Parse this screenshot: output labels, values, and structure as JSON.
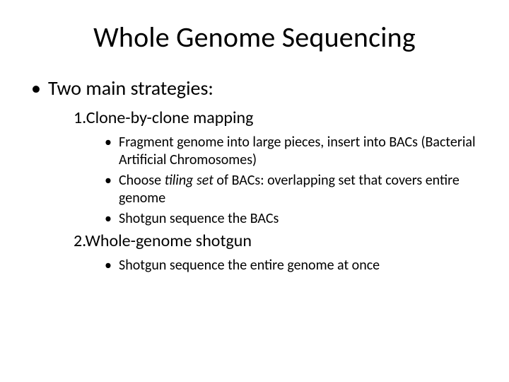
{
  "slide": {
    "background_color": "#ffffff",
    "text_color": "#000000",
    "font_family": "Calibri",
    "title": "Whole Genome Sequencing",
    "title_fontsize": 40,
    "level1_fontsize": 28,
    "level2_fontsize": 24,
    "level3_fontsize": 20,
    "bullet_glyph": "•",
    "content": {
      "main_bullet": "Two main strategies:",
      "strategies": [
        {
          "number_label": "1.",
          "heading": "Clone-by-clone mapping",
          "sub": [
            "Fragment genome into large pieces, insert into BACs (Bacterial Artificial Chromosomes)",
            {
              "prefix": "Choose ",
              "italic": "tiling set",
              "suffix": " of BACs: overlapping set that covers entire genome"
            },
            "Shotgun sequence the BACs"
          ]
        },
        {
          "number_label": "2.",
          "heading": "Whole-genome shotgun",
          "sub": [
            "Shotgun sequence the entire genome at once"
          ]
        }
      ]
    }
  }
}
